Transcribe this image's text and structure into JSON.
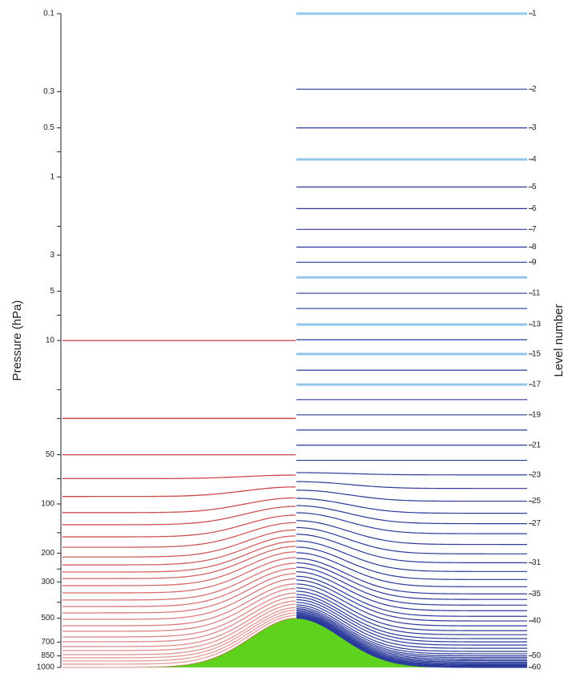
{
  "chart_data": {
    "type": "levels",
    "y_label": "Pressure (hPa)",
    "y2_label": "Level number",
    "yscale": "log",
    "ylim": [
      0.1,
      1000
    ],
    "yticks": [
      0.1,
      0.3,
      0.5,
      1,
      3,
      5,
      10,
      50,
      100,
      200,
      300,
      500,
      700,
      850,
      1000
    ],
    "yminorticks": [
      0.7,
      2,
      7,
      20,
      30,
      70,
      150,
      250,
      400
    ],
    "terrain_peak": 500,
    "terrain_color": "#5fd21e",
    "pressure_levels": {
      "color": "#c83a3a",
      "values": [
        10,
        30,
        50,
        70,
        90,
        113,
        134,
        159,
        184,
        211,
        236,
        261,
        286,
        316,
        350,
        387,
        424,
        464,
        508,
        556,
        601,
        651,
        697,
        746,
        789,
        835,
        873,
        914,
        955,
        1000
      ]
    },
    "levels": {
      "labels": [
        "1",
        "2",
        "3",
        "4",
        "5",
        "6",
        "7",
        "8",
        "9",
        null,
        "11",
        null,
        "13",
        null,
        "15",
        null,
        "17",
        null,
        "19",
        null,
        "21",
        null,
        "23",
        null,
        "25",
        null,
        "27",
        null,
        null,
        null,
        "31",
        null,
        null,
        null,
        "35",
        null,
        null,
        null,
        null,
        "40",
        null,
        null,
        null,
        null,
        null,
        null,
        null,
        null,
        null,
        "50",
        null,
        null,
        null,
        null,
        null,
        null,
        null,
        null,
        null,
        "60"
      ],
      "values": [
        0.1,
        0.29,
        0.5,
        0.78,
        1.15,
        1.56,
        2.09,
        2.68,
        3.32,
        4.11,
        5.14,
        6.37,
        7.98,
        9.89,
        12.1,
        15.2,
        18.6,
        23,
        28.5,
        35.3,
        43.7,
        54.1,
        66.4,
        80.4,
        96.2,
        114,
        132,
        152,
        177,
        202,
        229,
        259,
        290,
        321,
        355,
        384,
        416,
        450,
        487,
        520,
        557,
        596,
        631,
        667,
        698,
        730,
        764,
        798,
        826,
        850,
        870,
        890,
        908,
        925,
        940,
        955,
        967,
        978,
        990,
        1000
      ],
      "colors": [
        "#93c6ec",
        "#2b3a9a",
        "#2b3a9a",
        "#93c6ec",
        "#2b3a9a",
        "#2b3a9a",
        "#2b3a9a",
        "#2b3a9a",
        "#2b3a9a",
        "#93c6ec",
        "#2b3a9a",
        "#2b3a9a",
        "#93c6ec",
        "#2b3a9a",
        "#93c6ec",
        "#2b3a9a",
        "#93c6ec",
        "#2b3a9a",
        "#2b3a9a",
        "#2b3a9a",
        "#2b3a9a",
        "#2b3a9a",
        "#2b3a9a",
        "#2b3a9a",
        "#2b3a9a",
        "#2b3a9a",
        "#2b3a9a",
        "#2b3a9a",
        "#2b3a9a",
        "#2b3a9a",
        "#2b3a9a",
        "#2b3a9a",
        "#2b3a9a",
        "#2b3a9a",
        "#2b3a9a",
        "#2b3a9a",
        "#2b3a9a",
        "#2b3a9a",
        "#2b3a9a",
        "#2b3a9a",
        "#2b3a9a",
        "#2b3a9a",
        "#2b3a9a",
        "#2b3a9a",
        "#2b3a9a",
        "#2b3a9a",
        "#2b3a9a",
        "#2b3a9a",
        "#2b3a9a",
        "#2b3a9a",
        "#2b3a9a",
        "#2b3a9a",
        "#2b3a9a",
        "#2b3a9a",
        "#2b3a9a",
        "#2b3a9a",
        "#2b3a9a",
        "#2b3a9a",
        "#2b3a9a",
        "#2b3a9a"
      ]
    }
  }
}
